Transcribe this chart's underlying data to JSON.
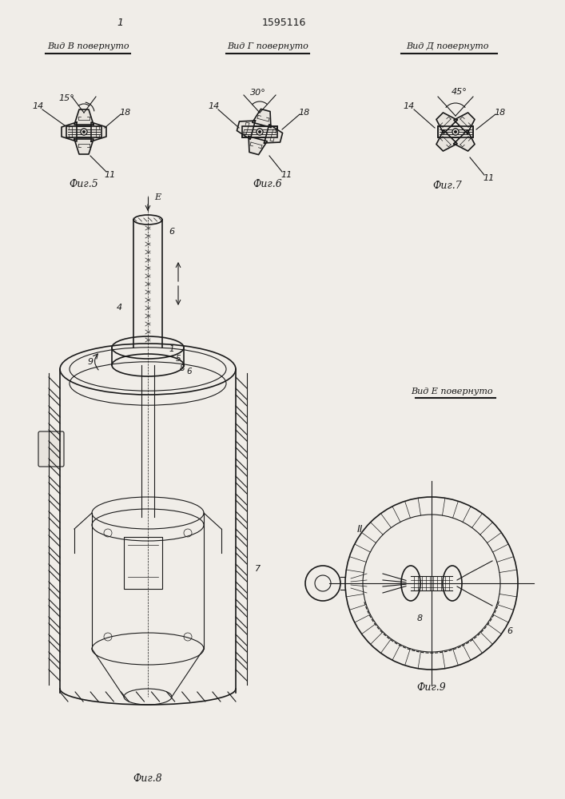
{
  "title_number": "1595116",
  "page_number": "1",
  "bg_color": "#f0ede8",
  "line_color": "#1a1a1a",
  "fig5_label": "Фиг.5",
  "fig6_label": "Фиг.6",
  "fig7_label": "Фиг.7",
  "fig8_label": "Фиг.8",
  "fig9_label": "Фиг.9",
  "vid_B": "Вид В повернуто",
  "vid_G": "Вид Г повернуто",
  "vid_D": "Вид Д повернуто",
  "vid_E": "Вид Е повернуто",
  "angle_B": "15°",
  "angle_G": "30°",
  "angle_D": "45°"
}
